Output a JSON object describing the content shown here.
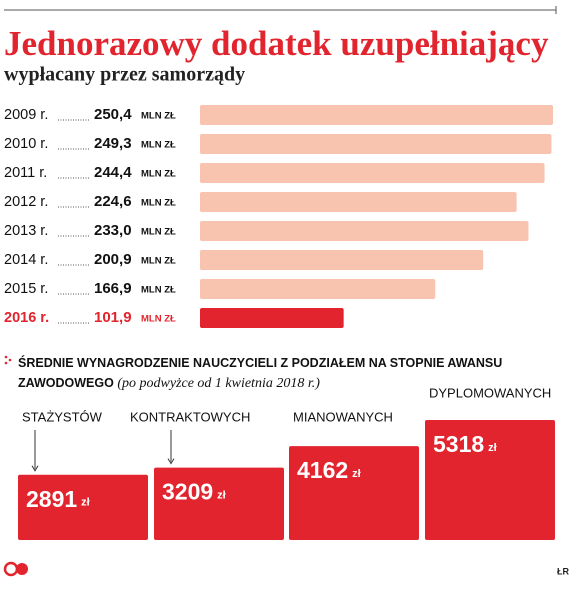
{
  "chart_data": [
    {
      "type": "hbar",
      "title": "Jednorazowy dodatek uzupełniający",
      "subtitle": "wypłacany przez samorządy",
      "categories": [
        "2009 r.",
        "2010 r.",
        "2011 r.",
        "2012 r.",
        "2013 r.",
        "2014 r.",
        "2015 r.",
        "2016 r."
      ],
      "values": [
        250.4,
        249.3,
        244.4,
        224.6,
        233.0,
        200.9,
        166.9,
        101.9
      ],
      "value_labels": [
        "250,4",
        "249,3",
        "244,4",
        "224,6",
        "233,0",
        "200,9",
        "166,9",
        "101,9"
      ],
      "unit": "MLN ZŁ",
      "color": "#f8c4b0",
      "highlight_index": 7,
      "highlight_color": "#e1242d"
    },
    {
      "type": "bar",
      "title": "ŚREDNIE WYNAGRODZENIE NAUCZYCIELI Z PODZIAŁEM NA STOPNIE AWANSU ZAWODOWEGO",
      "note": "(po podwyżce od 1 kwietnia 2018 r.)",
      "categories": [
        "STAŻYSTÓW",
        "KONTRAKTOWYCH",
        "MIANOWANYCH",
        "DYPLOMOWANYCH"
      ],
      "values": [
        2891,
        3209,
        4162,
        5318
      ],
      "unit": "zł",
      "color": "#e1242d"
    }
  ],
  "footer": {
    "credit": "ŁR"
  }
}
